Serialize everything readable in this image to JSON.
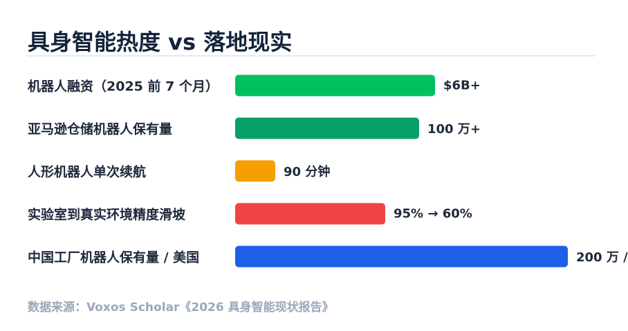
{
  "header": {
    "title": "具身智能热度 vs 落地现实"
  },
  "rows": [
    {
      "label": "机器人融资（2025 前 7 个月）",
      "value": "$6B+",
      "color": "#00c05f"
    },
    {
      "label": "亚马逊仓储机器人保有量",
      "value": "100 万+",
      "color": "#099f69"
    },
    {
      "label": "人形机器人单次续航",
      "value": "90 分钟",
      "color": "#f59f00"
    },
    {
      "label": "实验室到真实环境精度滑坡",
      "value": "95% → 60%",
      "color": "#ef4444"
    },
    {
      "label": "中国工厂机器人保有量 / 美国",
      "value": "200 万 /",
      "color": "#1f5fe8"
    }
  ],
  "footer": {
    "source": "数据来源：Voxos Scholar《2026 具身智能现状报告》"
  }
}
